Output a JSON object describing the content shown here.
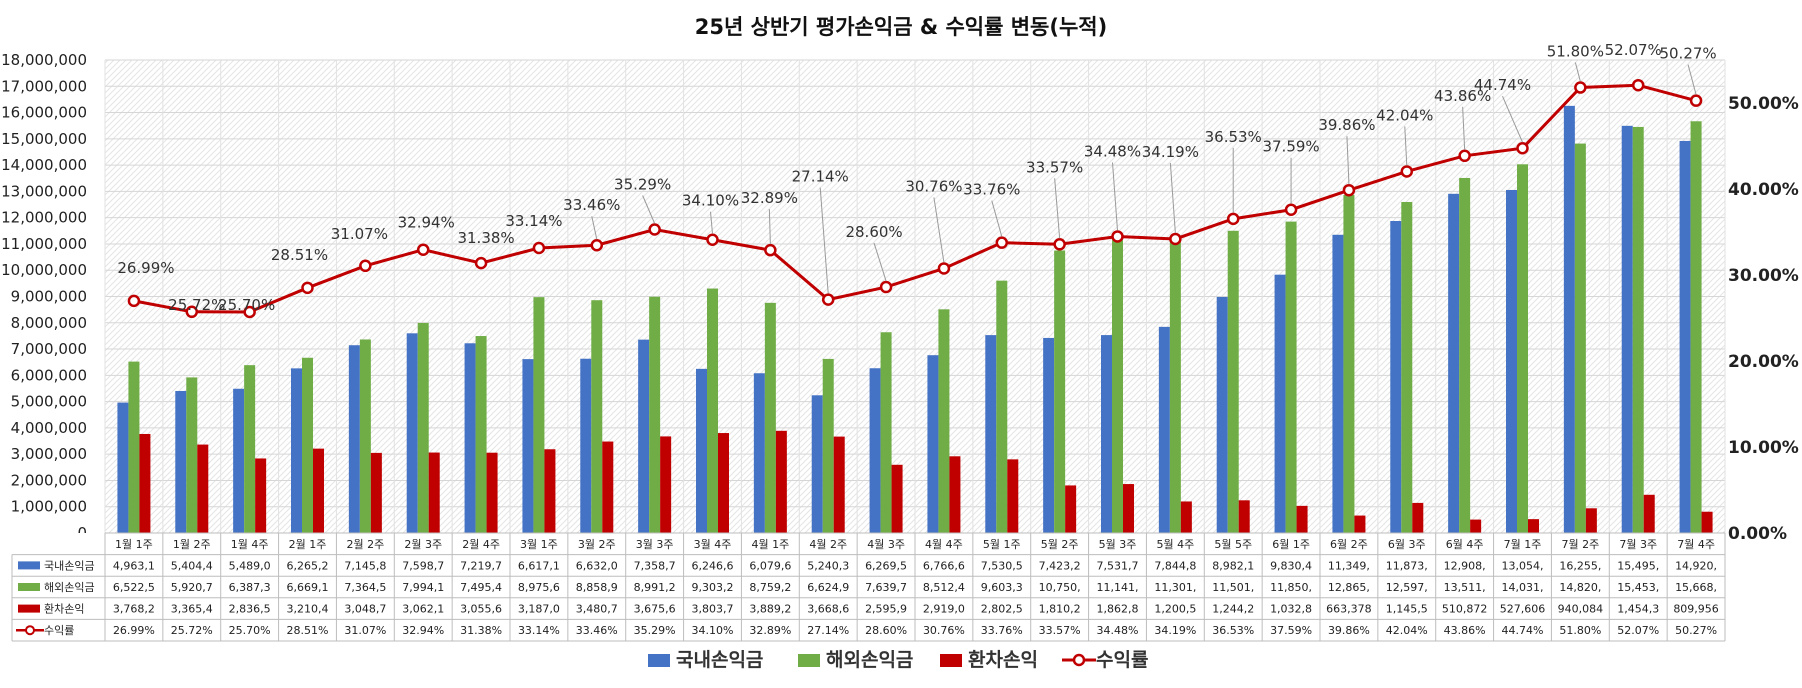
{
  "chart_data": {
    "type": "bar",
    "title": "25년 상반기 평가손익금 & 수익률 변동(누적)",
    "categories": [
      "1월 1주",
      "1월 2주",
      "1월 4주",
      "2월 1주",
      "2월 2주",
      "2월 3주",
      "2월 4주",
      "3월 1주",
      "3월 2주",
      "3월 3주",
      "3월 4주",
      "4월 1주",
      "4월 2주",
      "4월 3주",
      "4월 4주",
      "5월 1주",
      "5월 2주",
      "5월 3주",
      "5월 4주",
      "5월 5주",
      "6월 1주",
      "6월 2주",
      "6월 3주",
      "6월 4주",
      "7월 1주",
      "7월 2주",
      "7월 3주",
      "7월 4주"
    ],
    "left_axis": {
      "min": 0,
      "max": 18000000,
      "step": 1000000,
      "tick_labels": [
        "0",
        "1,000,000",
        "2,000,000",
        "3,000,000",
        "4,000,000",
        "5,000,000",
        "6,000,000",
        "7,000,000",
        "8,000,000",
        "9,000,000",
        "10,000,000",
        "11,000,000",
        "12,000,000",
        "13,000,000",
        "14,000,000",
        "15,000,000",
        "16,000,000",
        "17,000,000",
        "18,000,000"
      ]
    },
    "right_axis": {
      "min": 0,
      "max": 55,
      "tick_values": [
        0,
        10,
        20,
        30,
        40,
        50
      ],
      "tick_labels": [
        "0.00%",
        "10.00%",
        "20.00%",
        "30.00%",
        "40.00%",
        "50.00%"
      ]
    },
    "series": [
      {
        "name": "국내손익금",
        "kind": "bar",
        "axis": "left",
        "color": "#4472C4",
        "values": [
          4963100,
          5404400,
          5489000,
          6265200,
          7145800,
          7598700,
          7219700,
          6617100,
          6632000,
          7358700,
          6246600,
          6079600,
          5240300,
          6269500,
          6766600,
          7530500,
          7423200,
          7531700,
          7844800,
          8982100,
          9830400,
          11349000,
          11873000,
          12908000,
          13054000,
          16255000,
          15495000,
          14920000
        ],
        "table_values": [
          "4,963,1",
          "5,404,4",
          "5,489,0",
          "6,265,2",
          "7,145,8",
          "7,598,7",
          "7,219,7",
          "6,617,1",
          "6,632,0",
          "7,358,7",
          "6,246,6",
          "6,079,6",
          "5,240,3",
          "6,269,5",
          "6,766,6",
          "7,530,5",
          "7,423,2",
          "7,531,7",
          "7,844,8",
          "8,982,1",
          "9,830,4",
          "11,349,",
          "11,873,",
          "12,908,",
          "13,054,",
          "16,255,",
          "15,495,",
          "14,920,"
        ]
      },
      {
        "name": "해외손익금",
        "kind": "bar",
        "axis": "left",
        "color": "#70AD47",
        "values": [
          6522500,
          5920700,
          6387300,
          6669100,
          7364500,
          7994100,
          7495400,
          8975600,
          8858900,
          8991200,
          9303200,
          8759200,
          6624900,
          7639700,
          8512400,
          9603300,
          10750000,
          11141000,
          11301000,
          11501000,
          11850000,
          12865000,
          12597000,
          13511000,
          14031000,
          14820000,
          15453000,
          15668000
        ],
        "table_values": [
          "6,522,5",
          "5,920,7",
          "6,387,3",
          "6,669,1",
          "7,364,5",
          "7,994,1",
          "7,495,4",
          "8,975,6",
          "8,858,9",
          "8,991,2",
          "9,303,2",
          "8,759,2",
          "6,624,9",
          "7,639,7",
          "8,512,4",
          "9,603,3",
          "10,750,",
          "11,141,",
          "11,301,",
          "11,501,",
          "11,850,",
          "12,865,",
          "12,597,",
          "13,511,",
          "14,031,",
          "14,820,",
          "15,453,",
          "15,668,"
        ]
      },
      {
        "name": "환차손익",
        "kind": "bar",
        "axis": "left",
        "color": "#C00000",
        "values": [
          3768200,
          3365400,
          2836500,
          3210400,
          3048700,
          3062100,
          3055600,
          3187000,
          3480700,
          3675600,
          3803700,
          3889200,
          3668600,
          2595900,
          2919000,
          2802500,
          1810200,
          1862800,
          1200500,
          1244200,
          1032800,
          663378,
          1145500,
          510872,
          527606,
          940084,
          1454300,
          809956
        ],
        "table_values": [
          "3,768,2",
          "3,365,4",
          "2,836,5",
          "3,210,4",
          "3,048,7",
          "3,062,1",
          "3,055,6",
          "3,187,0",
          "3,480,7",
          "3,675,6",
          "3,803,7",
          "3,889,2",
          "3,668,6",
          "2,595,9",
          "2,919,0",
          "2,802,5",
          "1,810,2",
          "1,862,8",
          "1,200,5",
          "1,244,2",
          "1,032,8",
          "663,378",
          "1,145,5",
          "510,872",
          "527,606",
          "940,084",
          "1,454,3",
          "809,956"
        ]
      },
      {
        "name": "수익률",
        "kind": "line",
        "axis": "right",
        "color": "#C00000",
        "values": [
          26.99,
          25.72,
          25.7,
          28.51,
          31.07,
          32.94,
          31.38,
          33.14,
          33.46,
          35.29,
          34.1,
          32.89,
          27.14,
          28.6,
          30.76,
          33.76,
          33.57,
          34.48,
          34.19,
          36.53,
          37.59,
          39.86,
          42.04,
          43.86,
          44.74,
          51.8,
          52.07,
          50.27
        ],
        "data_labels": [
          "26.99%",
          "25.72%",
          "25.70%",
          "28.51%",
          "31.07%",
          "32.94%",
          "31.38%",
          "33.14%",
          "33.46%",
          "35.29%",
          "34.10%",
          "32.89%",
          "27.14%",
          "28.60%",
          "30.76%",
          "33.76%",
          "33.57%",
          "34.48%",
          "34.19%",
          "36.53%",
          "37.59%",
          "39.86%",
          "42.04%",
          "43.86%",
          "44.74%",
          "51.80%",
          "52.07%",
          "50.27%"
        ],
        "table_values": [
          "26.99%",
          "25.72%",
          "25.70%",
          "28.51%",
          "31.07%",
          "32.94%",
          "31.38%",
          "33.14%",
          "33.46%",
          "35.29%",
          "34.10%",
          "32.89%",
          "27.14%",
          "28.60%",
          "30.76%",
          "33.76%",
          "33.57%",
          "34.48%",
          "34.19%",
          "36.53%",
          "37.59%",
          "39.86%",
          "42.04%",
          "43.86%",
          "44.74%",
          "51.80%",
          "52.07%",
          "50.27%"
        ]
      }
    ],
    "legend_position": "bottom",
    "data_table": true,
    "grid": true
  }
}
